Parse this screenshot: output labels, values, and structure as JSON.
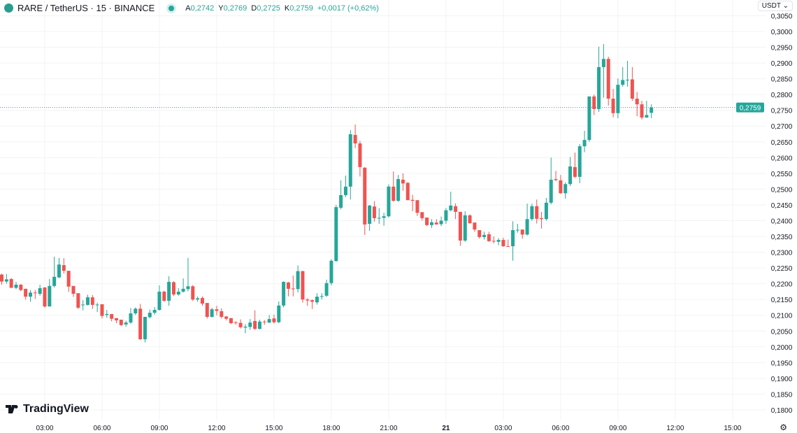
{
  "header": {
    "symbol": "RARE / TetherUS · 15 · BINANCE",
    "o_label": "A",
    "o": "0,2742",
    "h_label": "Y",
    "h": "0,2769",
    "l_label": "D",
    "l": "0,2725",
    "c_label": "K",
    "c": "0,2759",
    "change": "+0,0017 (+0,62%)"
  },
  "currency_selector": "USDT",
  "logo": "TradingView",
  "colors": {
    "up": "#26a69a",
    "down": "#ef5350",
    "grid": "#f2f3f6"
  },
  "icons": {
    "settings": "gear-icon",
    "chevron": "chevron-down-icon"
  },
  "chart_data": {
    "type": "candlestick",
    "interval_minutes": 15,
    "first_candle_time": "00:45",
    "ylim": [
      0.18,
      0.305
    ],
    "grid": true,
    "y_ticks": [
      "0,3050",
      "0,3000",
      "0,2950",
      "0,2900",
      "0,2850",
      "0,2800",
      "0,2750",
      "0,2700",
      "0,2650",
      "0,2600",
      "0,2550",
      "0,2500",
      "0,2450",
      "0,2400",
      "0,2350",
      "0,2300",
      "0,2250",
      "0,2200",
      "0,2150",
      "0,2100",
      "0,2050",
      "0,2000",
      "0,1950",
      "0,1900",
      "0,1850",
      "0,1800"
    ],
    "x_ticks": [
      {
        "label": "03:00",
        "hour": 3
      },
      {
        "label": "06:00",
        "hour": 6
      },
      {
        "label": "09:00",
        "hour": 9
      },
      {
        "label": "12:00",
        "hour": 12
      },
      {
        "label": "15:00",
        "hour": 15
      },
      {
        "label": "18:00",
        "hour": 18
      },
      {
        "label": "21:00",
        "hour": 21
      },
      {
        "label": "21",
        "hour": 24,
        "bold": true
      },
      {
        "label": "03:00",
        "hour": 27
      },
      {
        "label": "06:00",
        "hour": 30
      },
      {
        "label": "09:00",
        "hour": 33
      },
      {
        "label": "12:00",
        "hour": 36
      },
      {
        "label": "15:00",
        "hour": 39
      }
    ],
    "last_price": 0.2759,
    "last_price_label": "0,2759",
    "ohlc": [
      [
        0.2229,
        0.2232,
        0.2197,
        0.2207
      ],
      [
        0.2207,
        0.2231,
        0.22,
        0.2214
      ],
      [
        0.2215,
        0.2218,
        0.2187,
        0.2187
      ],
      [
        0.2187,
        0.2206,
        0.2183,
        0.2197
      ],
      [
        0.2197,
        0.2199,
        0.2176,
        0.218
      ],
      [
        0.2184,
        0.2184,
        0.215,
        0.2159
      ],
      [
        0.2159,
        0.218,
        0.2143,
        0.2172
      ],
      [
        0.2172,
        0.218,
        0.2152,
        0.217
      ],
      [
        0.2168,
        0.2197,
        0.2162,
        0.2186
      ],
      [
        0.2188,
        0.219,
        0.2124,
        0.2128
      ],
      [
        0.2128,
        0.2215,
        0.2128,
        0.2193
      ],
      [
        0.2193,
        0.2286,
        0.2188,
        0.2222
      ],
      [
        0.222,
        0.2282,
        0.2218,
        0.2261
      ],
      [
        0.2259,
        0.2281,
        0.2232,
        0.2241
      ],
      [
        0.2241,
        0.2241,
        0.2174,
        0.2191
      ],
      [
        0.2193,
        0.2193,
        0.2158,
        0.2168
      ],
      [
        0.217,
        0.217,
        0.212,
        0.2124
      ],
      [
        0.2132,
        0.2148,
        0.2116,
        0.2134
      ],
      [
        0.2133,
        0.2165,
        0.2131,
        0.2157
      ],
      [
        0.2157,
        0.2164,
        0.212,
        0.2133
      ],
      [
        0.2132,
        0.214,
        0.211,
        0.2134
      ],
      [
        0.2135,
        0.2135,
        0.209,
        0.2098
      ],
      [
        0.2101,
        0.2117,
        0.2092,
        0.2104
      ],
      [
        0.2104,
        0.2104,
        0.2081,
        0.2089
      ],
      [
        0.2091,
        0.2091,
        0.2075,
        0.2084
      ],
      [
        0.2086,
        0.2086,
        0.2066,
        0.2069
      ],
      [
        0.2071,
        0.2083,
        0.2064,
        0.2077
      ],
      [
        0.2077,
        0.2123,
        0.2073,
        0.2106
      ],
      [
        0.2106,
        0.2125,
        0.2101,
        0.2121
      ],
      [
        0.2121,
        0.2136,
        0.2022,
        0.2024
      ],
      [
        0.2024,
        0.2095,
        0.2014,
        0.2095
      ],
      [
        0.2094,
        0.2118,
        0.209,
        0.2108
      ],
      [
        0.2108,
        0.2126,
        0.2102,
        0.2117
      ],
      [
        0.2117,
        0.2195,
        0.2115,
        0.2175
      ],
      [
        0.2175,
        0.2178,
        0.2143,
        0.2146
      ],
      [
        0.2146,
        0.2224,
        0.213,
        0.2206
      ],
      [
        0.2205,
        0.2208,
        0.2161,
        0.2166
      ],
      [
        0.2166,
        0.2186,
        0.2162,
        0.2175
      ],
      [
        0.2175,
        0.2217,
        0.2172,
        0.2184
      ],
      [
        0.2183,
        0.2282,
        0.2176,
        0.2192
      ],
      [
        0.2192,
        0.2196,
        0.2145,
        0.215
      ],
      [
        0.215,
        0.216,
        0.2143,
        0.2154
      ],
      [
        0.2155,
        0.216,
        0.213,
        0.2137
      ],
      [
        0.2139,
        0.2139,
        0.209,
        0.2095
      ],
      [
        0.2095,
        0.2124,
        0.2093,
        0.2119
      ],
      [
        0.2119,
        0.213,
        0.21,
        0.2114
      ],
      [
        0.2113,
        0.2122,
        0.209,
        0.2095
      ],
      [
        0.2096,
        0.2098,
        0.2084,
        0.2089
      ],
      [
        0.2091,
        0.2091,
        0.2072,
        0.2075
      ],
      [
        0.2078,
        0.2081,
        0.207,
        0.2077
      ],
      [
        0.2076,
        0.2087,
        0.2058,
        0.2062
      ],
      [
        0.2061,
        0.2072,
        0.2043,
        0.2064
      ],
      [
        0.2063,
        0.2088,
        0.2054,
        0.2077
      ],
      [
        0.2082,
        0.2116,
        0.2053,
        0.2057
      ],
      [
        0.2057,
        0.2086,
        0.2055,
        0.208
      ],
      [
        0.208,
        0.2085,
        0.207,
        0.2078
      ],
      [
        0.2077,
        0.2101,
        0.2075,
        0.2088
      ],
      [
        0.209,
        0.2102,
        0.2074,
        0.2078
      ],
      [
        0.2078,
        0.2144,
        0.2075,
        0.2131
      ],
      [
        0.2131,
        0.2208,
        0.2125,
        0.2206
      ],
      [
        0.2204,
        0.2206,
        0.216,
        0.2184
      ],
      [
        0.2185,
        0.2226,
        0.216,
        0.2183
      ],
      [
        0.2183,
        0.2258,
        0.2172,
        0.224
      ],
      [
        0.224,
        0.2241,
        0.214,
        0.215
      ],
      [
        0.215,
        0.2154,
        0.213,
        0.2147
      ],
      [
        0.2148,
        0.215,
        0.212,
        0.2143
      ],
      [
        0.2141,
        0.217,
        0.2134,
        0.2159
      ],
      [
        0.2159,
        0.217,
        0.215,
        0.2161
      ],
      [
        0.2162,
        0.2213,
        0.2158,
        0.2202
      ],
      [
        0.2202,
        0.2278,
        0.2195,
        0.2273
      ],
      [
        0.2272,
        0.245,
        0.227,
        0.2443
      ],
      [
        0.2441,
        0.2528,
        0.2436,
        0.2481
      ],
      [
        0.2481,
        0.2543,
        0.2475,
        0.2508
      ],
      [
        0.2508,
        0.2687,
        0.2467,
        0.2674
      ],
      [
        0.2672,
        0.2705,
        0.263,
        0.2645
      ],
      [
        0.2645,
        0.2653,
        0.254,
        0.257
      ],
      [
        0.2568,
        0.257,
        0.2355,
        0.2388
      ],
      [
        0.239,
        0.245,
        0.2368,
        0.2448
      ],
      [
        0.2445,
        0.2462,
        0.2397,
        0.2408
      ],
      [
        0.2407,
        0.244,
        0.239,
        0.2409
      ],
      [
        0.2409,
        0.2425,
        0.2384,
        0.2414
      ],
      [
        0.2414,
        0.2515,
        0.241,
        0.2508
      ],
      [
        0.2508,
        0.2556,
        0.246,
        0.2463
      ],
      [
        0.2463,
        0.2545,
        0.246,
        0.2532
      ],
      [
        0.253,
        0.255,
        0.2495,
        0.2518
      ],
      [
        0.252,
        0.2522,
        0.2465,
        0.2465
      ],
      [
        0.2466,
        0.2482,
        0.243,
        0.2463
      ],
      [
        0.2465,
        0.2465,
        0.2415,
        0.2425
      ],
      [
        0.2427,
        0.2427,
        0.24,
        0.2408
      ],
      [
        0.241,
        0.241,
        0.2383,
        0.2386
      ],
      [
        0.2386,
        0.2405,
        0.2377,
        0.2395
      ],
      [
        0.2394,
        0.2405,
        0.2388,
        0.2388
      ],
      [
        0.2389,
        0.2413,
        0.2383,
        0.24
      ],
      [
        0.24,
        0.244,
        0.239,
        0.2433
      ],
      [
        0.2433,
        0.2492,
        0.243,
        0.2448
      ],
      [
        0.2446,
        0.2455,
        0.2405,
        0.2428
      ],
      [
        0.2428,
        0.2428,
        0.232,
        0.2337
      ],
      [
        0.2337,
        0.243,
        0.2333,
        0.2417
      ],
      [
        0.2417,
        0.242,
        0.239,
        0.2392
      ],
      [
        0.2394,
        0.2394,
        0.2365,
        0.2372
      ],
      [
        0.237,
        0.237,
        0.2343,
        0.2348
      ],
      [
        0.2348,
        0.2365,
        0.234,
        0.2355
      ],
      [
        0.2357,
        0.2365,
        0.2333,
        0.2335
      ],
      [
        0.2336,
        0.235,
        0.2328,
        0.2334
      ],
      [
        0.2333,
        0.2345,
        0.2322,
        0.2339
      ],
      [
        0.2339,
        0.2346,
        0.2317,
        0.2319
      ],
      [
        0.2319,
        0.234,
        0.2317,
        0.2318
      ],
      [
        0.2319,
        0.2398,
        0.2273,
        0.237
      ],
      [
        0.2369,
        0.239,
        0.2362,
        0.2371
      ],
      [
        0.2372,
        0.2372,
        0.2343,
        0.2356
      ],
      [
        0.2356,
        0.2454,
        0.2353,
        0.2405
      ],
      [
        0.2405,
        0.2454,
        0.24,
        0.2446
      ],
      [
        0.2446,
        0.2467,
        0.2391,
        0.2406
      ],
      [
        0.2408,
        0.2428,
        0.2375,
        0.2405
      ],
      [
        0.2405,
        0.2472,
        0.24,
        0.2457
      ],
      [
        0.2457,
        0.26,
        0.2452,
        0.253
      ],
      [
        0.2532,
        0.2558,
        0.2525,
        0.2529
      ],
      [
        0.2528,
        0.2545,
        0.2485,
        0.2487
      ],
      [
        0.2487,
        0.2522,
        0.247,
        0.2516
      ],
      [
        0.2516,
        0.2602,
        0.251,
        0.2572
      ],
      [
        0.257,
        0.2616,
        0.2535,
        0.2539
      ],
      [
        0.2539,
        0.2643,
        0.2519,
        0.2636
      ],
      [
        0.2636,
        0.2685,
        0.2617,
        0.2656
      ],
      [
        0.2656,
        0.2794,
        0.265,
        0.2794
      ],
      [
        0.2794,
        0.28,
        0.2735,
        0.2754
      ],
      [
        0.2754,
        0.2952,
        0.2745,
        0.2887
      ],
      [
        0.2887,
        0.296,
        0.279,
        0.2913
      ],
      [
        0.2913,
        0.292,
        0.2765,
        0.2787
      ],
      [
        0.2787,
        0.2818,
        0.2728,
        0.2741
      ],
      [
        0.2741,
        0.2851,
        0.2725,
        0.2831
      ],
      [
        0.2831,
        0.2887,
        0.2825,
        0.2846
      ],
      [
        0.2846,
        0.2907,
        0.2825,
        0.2847
      ],
      [
        0.2848,
        0.2887,
        0.278,
        0.2787
      ],
      [
        0.2787,
        0.2808,
        0.2731,
        0.2769
      ],
      [
        0.2769,
        0.278,
        0.2721,
        0.2727
      ],
      [
        0.2727,
        0.278,
        0.2727,
        0.2735
      ],
      [
        0.2742,
        0.2769,
        0.2725,
        0.2759
      ]
    ]
  }
}
